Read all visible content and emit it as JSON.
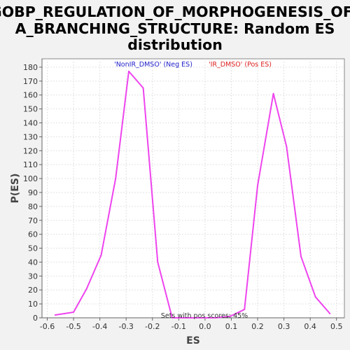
{
  "chart_data": {
    "type": "line",
    "title_lines": [
      "GOBP_REGULATION_OF_MORPHOGENESIS_OF_",
      "A_BRANCHING_STRUCTURE: Random ES",
      "distribution"
    ],
    "xlabel": "ES",
    "ylabel": "P(ES)",
    "xlim": [
      -0.62,
      0.53
    ],
    "ylim": [
      0,
      186
    ],
    "x_ticks": [
      -0.6,
      -0.5,
      -0.4,
      -0.3,
      -0.2,
      -0.1,
      0.0,
      0.1,
      0.2,
      0.3,
      0.4,
      0.5
    ],
    "x_tick_labels": [
      "-0.6",
      "-0.5",
      "-0.4",
      "-0.3",
      "-0.2",
      "-0.1",
      "0.0",
      "0.1",
      "0.2",
      "0.3",
      "0.4",
      "0.5"
    ],
    "y_ticks": [
      0,
      10,
      20,
      30,
      40,
      50,
      60,
      70,
      80,
      90,
      100,
      110,
      120,
      130,
      140,
      150,
      160,
      170,
      180
    ],
    "y_tick_labels": [
      "0",
      "10",
      "20",
      "30",
      "40",
      "50",
      "60",
      "70",
      "80",
      "90",
      "100",
      "110",
      "120",
      "130",
      "140",
      "150",
      "160",
      "170",
      "180"
    ],
    "grid": true,
    "series": [
      {
        "color": "#ee44ee",
        "x": [
          -0.57,
          -0.5,
          -0.45,
          -0.395,
          -0.34,
          -0.29,
          -0.235,
          -0.18,
          -0.125,
          -0.07,
          -0.015,
          0.04,
          0.095,
          0.15,
          0.2,
          0.26,
          0.31,
          0.365,
          0.42,
          0.475
        ],
        "y": [
          2,
          4,
          21,
          45,
          100,
          177,
          165,
          40,
          0,
          0,
          0,
          0,
          1,
          6,
          95,
          161,
          123,
          44,
          15,
          3
        ]
      }
    ],
    "legend": [
      {
        "label": "'NonIR_DMSO' (Neg ES)",
        "color": "#2222cc"
      },
      {
        "label": "'IR_DMSO' (Pos ES)",
        "color": "#dd2222"
      }
    ],
    "legend_position": "top",
    "annotation": "Sets with pos scores: 45%"
  }
}
